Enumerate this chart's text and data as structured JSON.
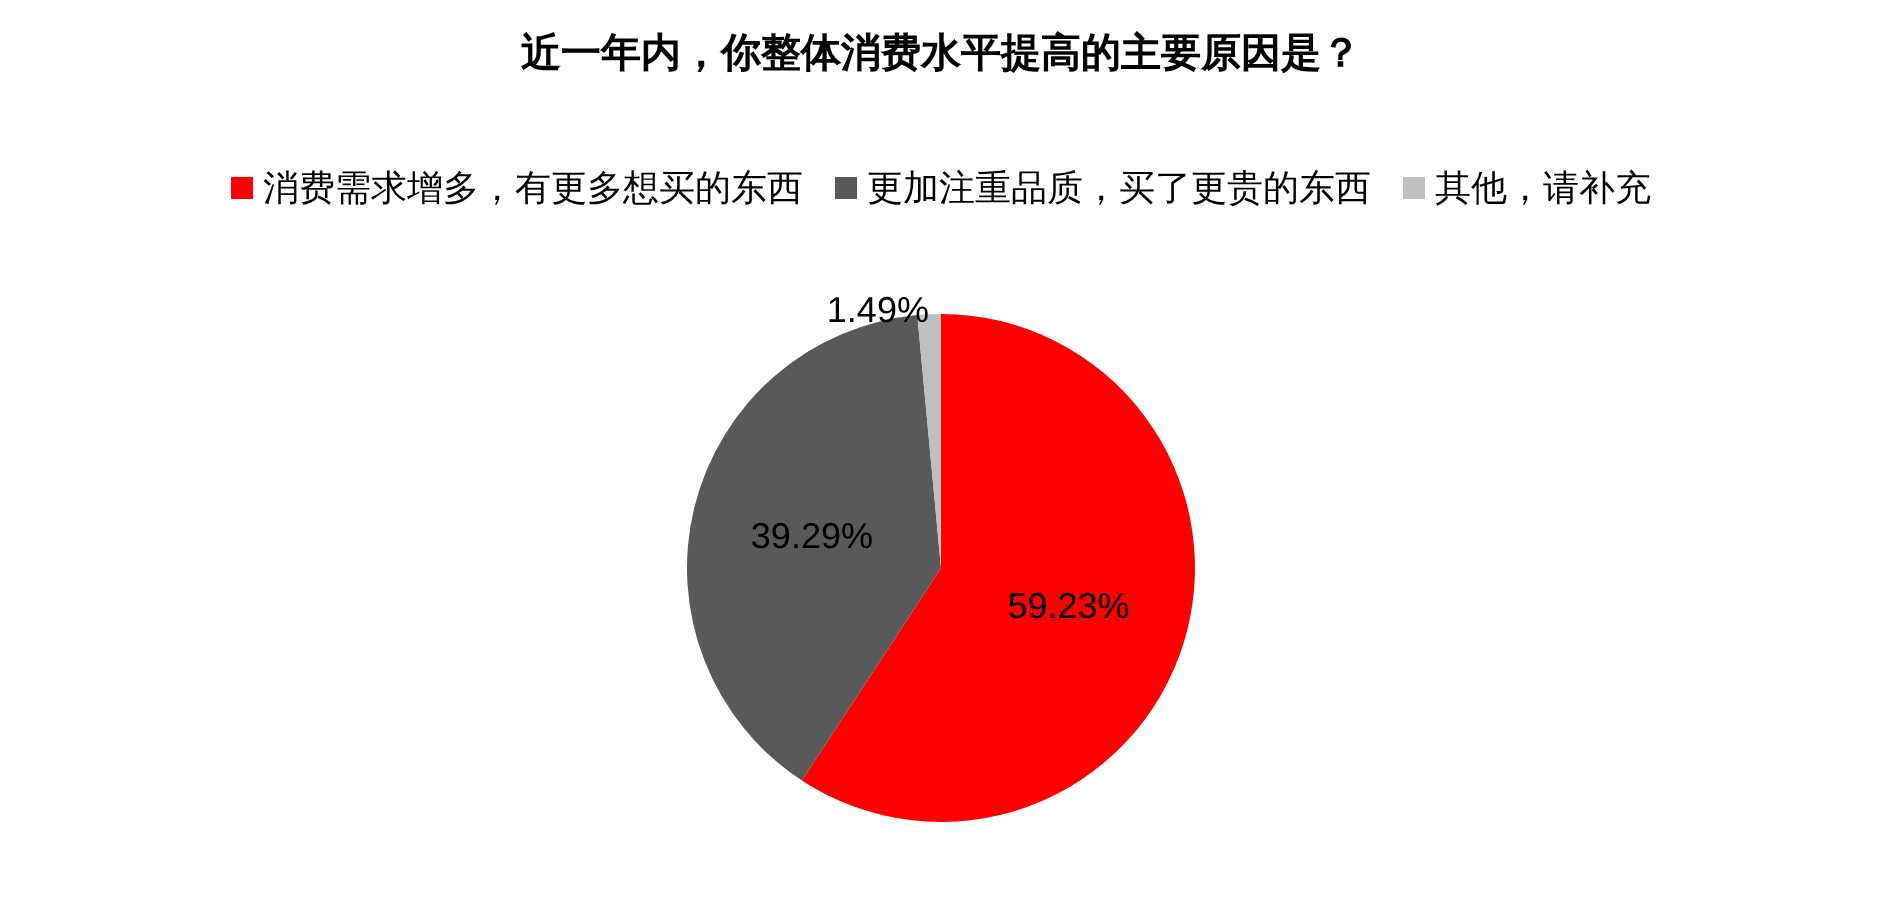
{
  "chart_data": {
    "type": "pie",
    "title": "近一年内，你整体消费水平提高的主要原因是？",
    "categories": [
      "消费需求增多，有更多想买的东西",
      "更加注重品质，买了更贵的东西",
      "其他，请补充"
    ],
    "values": [
      59.23,
      39.29,
      1.49
    ],
    "colors": [
      "#ff0000",
      "#595959",
      "#bfbfbf"
    ],
    "value_labels": [
      "59.23%",
      "39.29%",
      "1.49%"
    ],
    "legend": "top"
  }
}
